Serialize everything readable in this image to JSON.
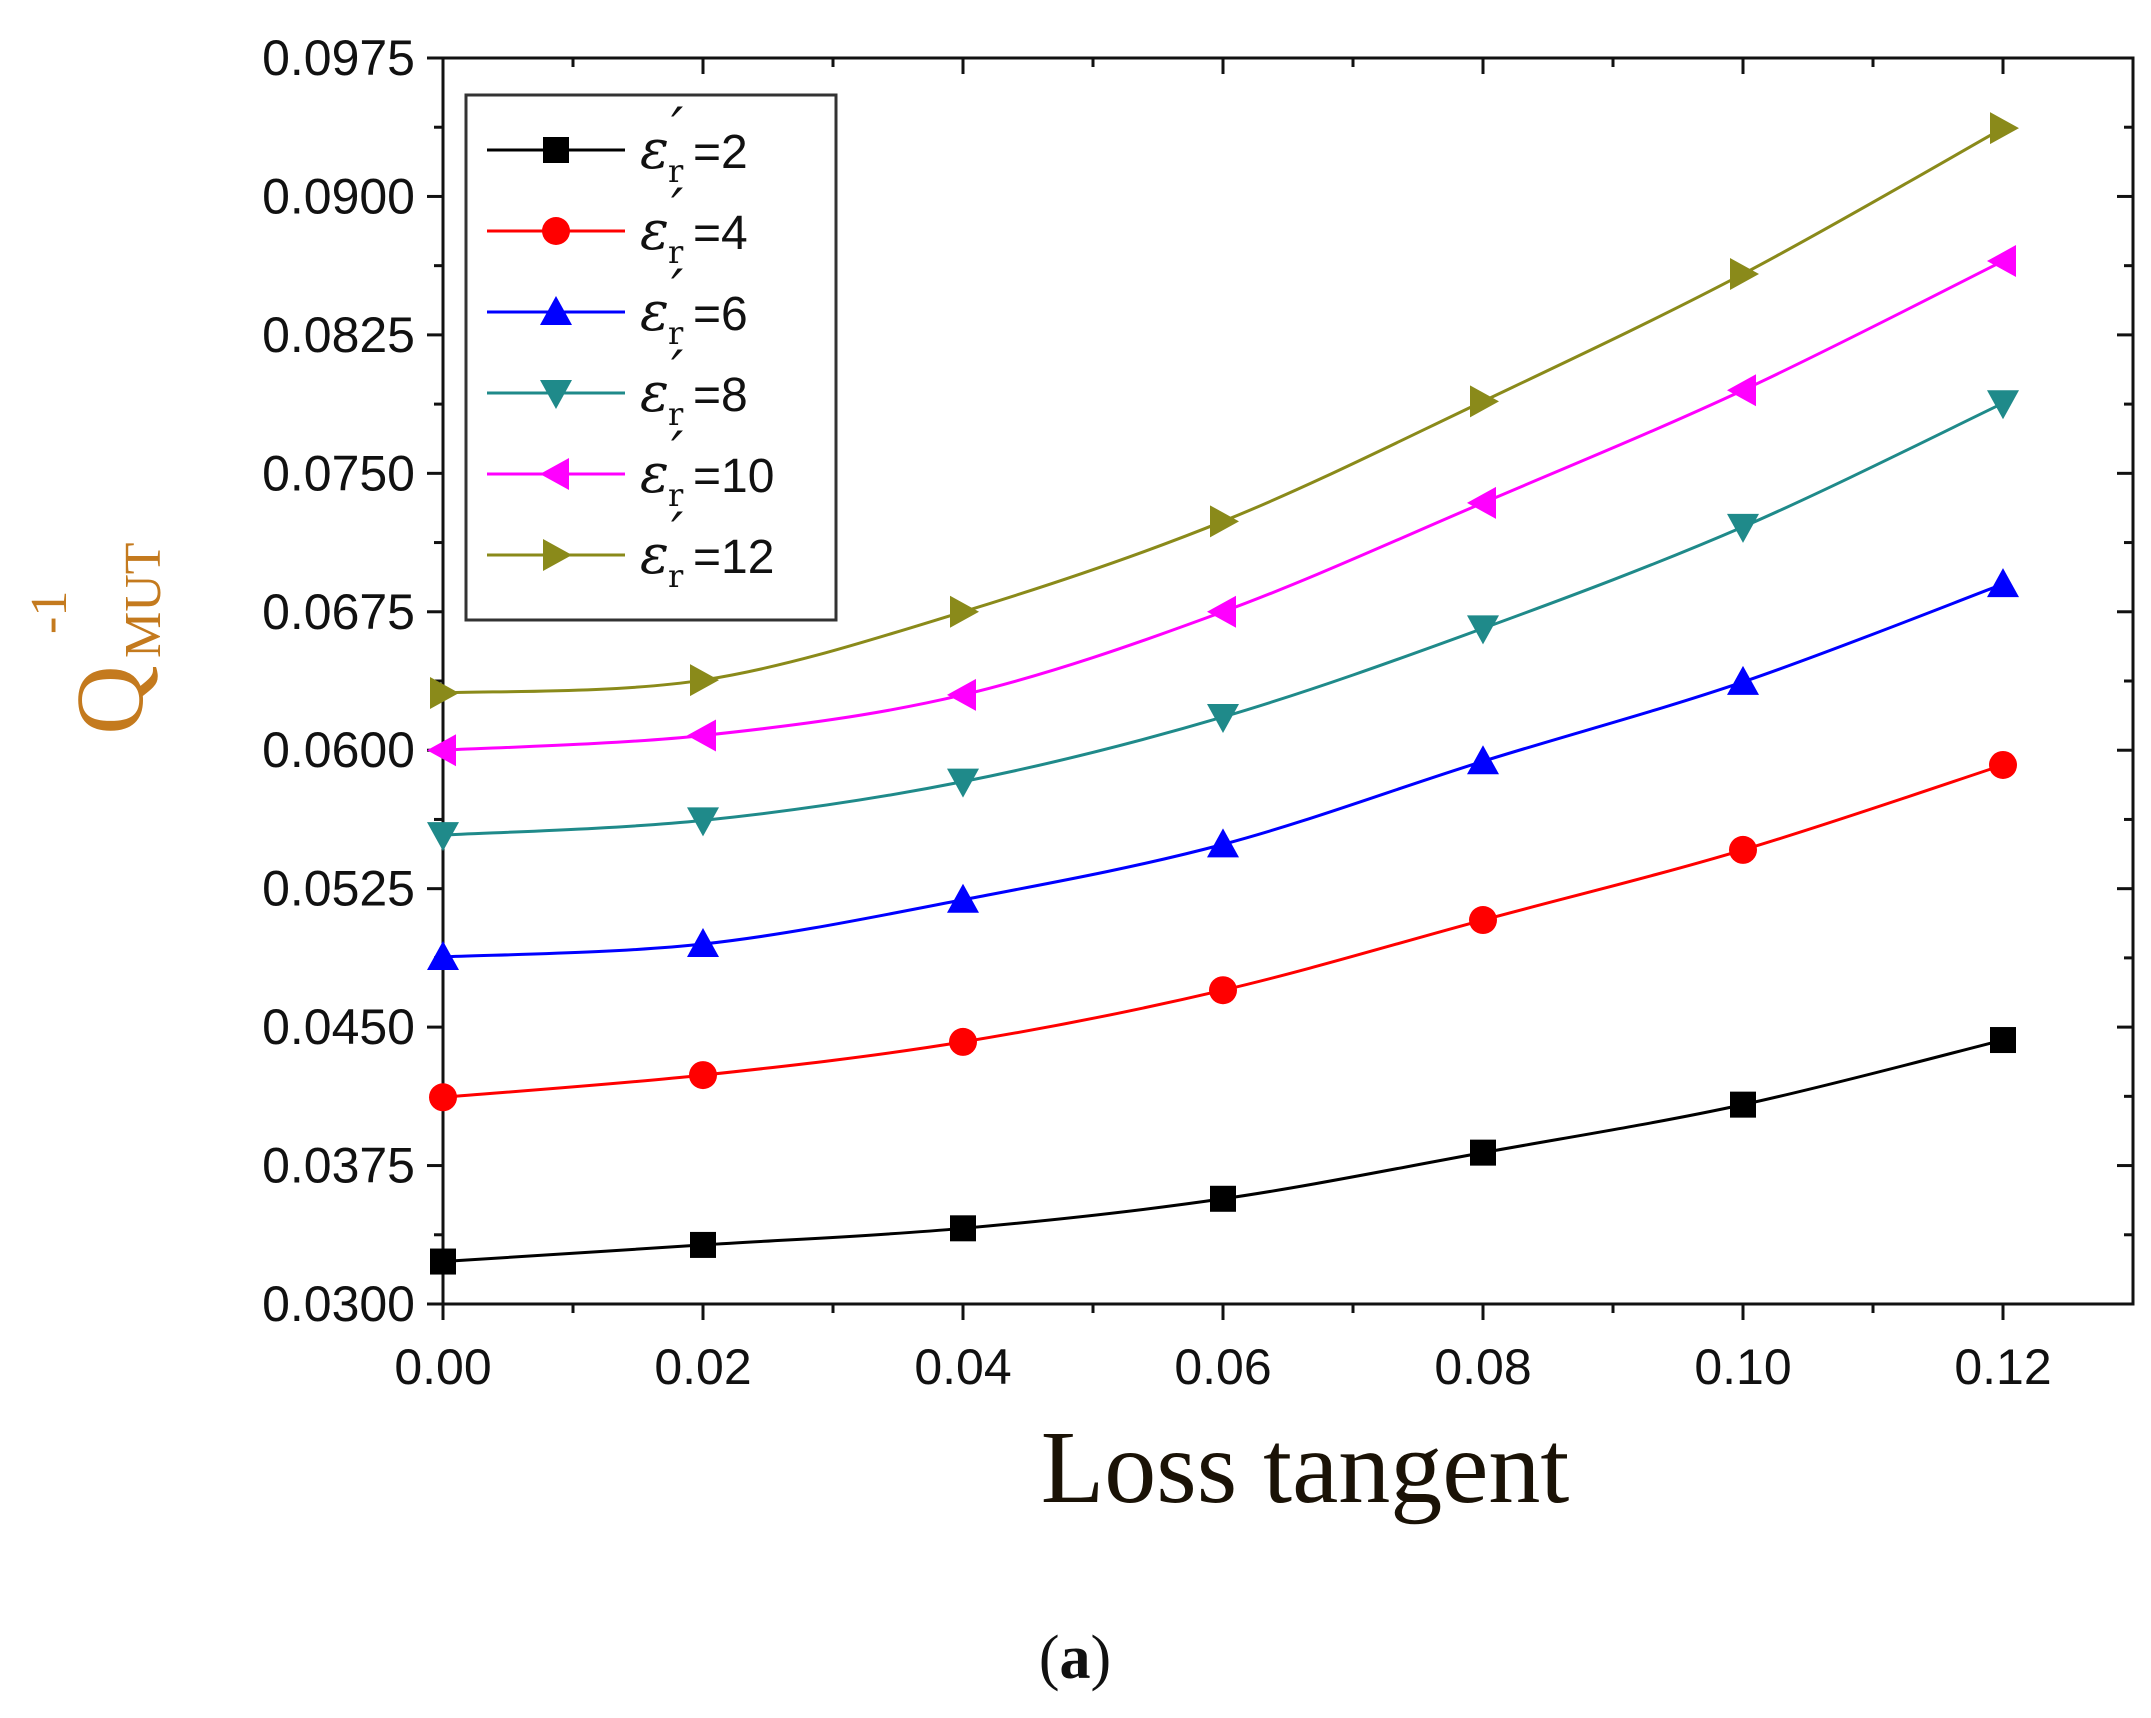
{
  "chart_data": {
    "type": "line",
    "xlabel": "Loss tangent",
    "ylabel": {
      "main": "Q",
      "superscript": "-1",
      "subscript": "MUT"
    },
    "caption": {
      "open": "(",
      "letter": "a",
      "close": ")"
    },
    "x": [
      0.0,
      0.02,
      0.04,
      0.06,
      0.08,
      0.1,
      0.12
    ],
    "xlim": [
      0.0,
      0.13
    ],
    "ylim": [
      0.03,
      0.0975
    ],
    "xticks": [
      "0.00",
      "0.02",
      "0.04",
      "0.06",
      "0.08",
      "0.10",
      "0.12"
    ],
    "yticks": [
      "0.0300",
      "0.0375",
      "0.0450",
      "0.0525",
      "0.0600",
      "0.0675",
      "0.0750",
      "0.0825",
      "0.0900",
      "0.0975"
    ],
    "legend_position": "top-left",
    "legend_symbol": "ε",
    "legend_subscript": "r",
    "series": [
      {
        "name": "=2",
        "marker": "square",
        "color": "#000000",
        "values": [
          0.0323,
          0.0332,
          0.0341,
          0.0357,
          0.0382,
          0.0408,
          0.0443
        ]
      },
      {
        "name": "=4",
        "marker": "circle",
        "color": "#ff0000",
        "values": [
          0.0412,
          0.0424,
          0.0442,
          0.047,
          0.0508,
          0.0546,
          0.0592
        ]
      },
      {
        "name": "=6",
        "marker": "triangle-up",
        "color": "#0000ff",
        "values": [
          0.0488,
          0.0495,
          0.0519,
          0.0549,
          0.0594,
          0.0637,
          0.069
        ]
      },
      {
        "name": "=8",
        "marker": "triangle-down",
        "color": "#1f8a8a",
        "values": [
          0.0554,
          0.0562,
          0.0583,
          0.0618,
          0.0666,
          0.0721,
          0.0788
        ]
      },
      {
        "name": "=10",
        "marker": "triangle-left",
        "color": "#ff00ff",
        "values": [
          0.06,
          0.0608,
          0.063,
          0.0675,
          0.0734,
          0.0795,
          0.0865
        ]
      },
      {
        "name": "=12",
        "marker": "triangle-right",
        "color": "#8a8a1a",
        "values": [
          0.0631,
          0.0638,
          0.0675,
          0.0724,
          0.0789,
          0.0858,
          0.0937
        ]
      }
    ]
  }
}
